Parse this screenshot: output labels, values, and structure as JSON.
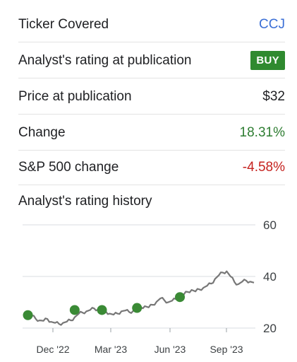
{
  "rows": [
    {
      "label": "Ticker Covered",
      "value": "CCJ",
      "style": "link"
    },
    {
      "label": "Analyst's rating at publication",
      "value": "BUY",
      "style": "badge"
    },
    {
      "label": "Price at publication",
      "value": "$32",
      "style": "plain"
    },
    {
      "label": "Change",
      "value": "18.31%",
      "style": "pos"
    },
    {
      "label": "S&P 500 change",
      "value": "-4.58%",
      "style": "neg"
    }
  ],
  "history_title": "Analyst's rating history",
  "colors": {
    "link": "#3b6fd6",
    "buy": "#2f8a2f",
    "positive": "#2e7d32",
    "negative": "#c5221f",
    "line": "#777777",
    "marker": "#3a8a35"
  },
  "chart_data": {
    "type": "line",
    "xticks": [
      "Dec '22",
      "Mar '23",
      "Jun '23",
      "Sep '23"
    ],
    "yticks": [
      "60",
      "40",
      "20"
    ],
    "ylim": [
      20,
      60
    ],
    "grid": true,
    "series": [
      {
        "values": [
          24.5,
          24.0,
          24.8,
          23.6,
          23.0,
          22.8,
          23.5,
          22.4,
          22.0,
          21.6,
          22.0,
          22.5,
          23.0,
          24.2,
          25.5,
          26.0,
          26.5,
          27.0,
          27.6,
          27.2,
          26.8,
          26.4,
          25.6,
          25.2,
          25.6,
          26.5,
          26.8,
          26.2,
          26.6,
          27.4,
          28.0,
          28.5,
          28.0,
          29.0,
          30.2,
          31.5,
          30.8,
          30.0,
          30.6,
          31.2,
          32.4,
          33.0,
          34.0,
          34.8,
          34.2,
          35.0,
          35.6,
          36.4,
          37.2,
          39.0,
          40.5,
          41.5,
          42.0,
          40.0,
          37.8,
          37.0,
          38.0,
          38.4,
          38.0,
          37.6
        ]
      }
    ],
    "rating_markers": [
      {
        "index": 1,
        "value": 25.0,
        "rating": "BUY"
      },
      {
        "index": 13,
        "value": 27.0,
        "rating": "BUY"
      },
      {
        "index": 20,
        "value": 27.0,
        "rating": "BUY"
      },
      {
        "index": 29,
        "value": 27.8,
        "rating": "BUY"
      },
      {
        "index": 40,
        "value": 32.0,
        "rating": "BUY"
      }
    ]
  }
}
